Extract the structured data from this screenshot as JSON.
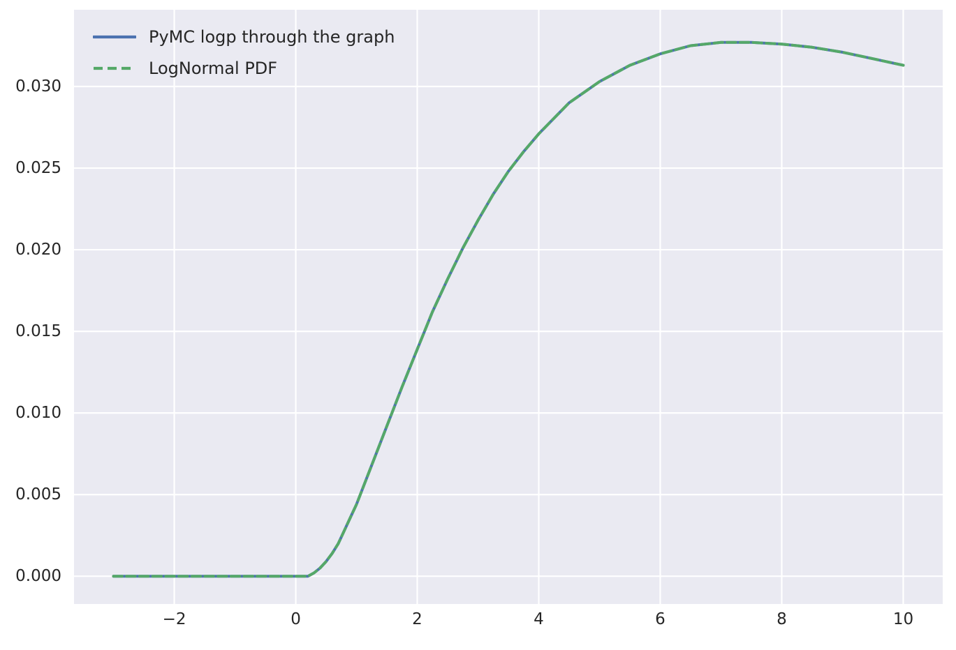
{
  "figure": {
    "background": "#ffffff",
    "axes_background": "#eaeaf2",
    "grid_color": "#ffffff",
    "text_color": "#262626"
  },
  "legend": {
    "position": "upper left",
    "entries": [
      {
        "label": "PyMC logp through the graph",
        "color": "#4C72B0",
        "line_style": "solid"
      },
      {
        "label": "LogNormal PDF",
        "color": "#55A868",
        "line_style": "dashed"
      }
    ]
  },
  "chart_data": {
    "type": "line",
    "title": "",
    "xlabel": "",
    "ylabel": "",
    "grid": true,
    "legend_position": "upper left",
    "xlim": [
      -3.65,
      10.65
    ],
    "ylim": [
      -0.0017,
      0.0347
    ],
    "x_ticks": [
      -2,
      0,
      2,
      4,
      6,
      8,
      10
    ],
    "x_tick_labels": [
      "−2",
      "0",
      "2",
      "4",
      "6",
      "8",
      "10"
    ],
    "y_ticks": [
      0.0,
      0.005,
      0.01,
      0.015,
      0.02,
      0.025,
      0.03
    ],
    "y_tick_labels": [
      "0.000",
      "0.005",
      "0.010",
      "0.015",
      "0.020",
      "0.025",
      "0.030"
    ],
    "x": [
      -3,
      -2.5,
      -2,
      -1.5,
      -1,
      -0.5,
      0,
      0.1,
      0.2,
      0.3,
      0.4,
      0.5,
      0.6,
      0.7,
      0.8,
      0.9,
      1,
      1.25,
      1.5,
      1.75,
      2,
      2.25,
      2.5,
      2.75,
      3,
      3.25,
      3.5,
      3.75,
      4,
      4.5,
      5,
      5.5,
      6,
      6.5,
      7,
      7.5,
      8,
      8.5,
      9,
      9.5,
      10
    ],
    "series": [
      {
        "name": "PyMC logp through the graph",
        "color": "#4C72B0",
        "line_style": "solid",
        "values": [
          0,
          0,
          0,
          0,
          0,
          0,
          0,
          0.0,
          0.0,
          0.0002,
          0.0005,
          0.0009,
          0.0014,
          0.002,
          0.0028,
          0.0036,
          0.0044,
          0.0068,
          0.0092,
          0.0116,
          0.0139,
          0.0162,
          0.0182,
          0.0201,
          0.0218,
          0.0234,
          0.0248,
          0.026,
          0.0271,
          0.029,
          0.0303,
          0.0313,
          0.032,
          0.0325,
          0.0327,
          0.0327,
          0.0326,
          0.0324,
          0.0321,
          0.0317,
          0.0313
        ]
      },
      {
        "name": "LogNormal PDF",
        "color": "#55A868",
        "line_style": "dashed",
        "values": [
          0,
          0,
          0,
          0,
          0,
          0,
          0,
          0.0,
          0.0,
          0.0002,
          0.0005,
          0.0009,
          0.0014,
          0.002,
          0.0028,
          0.0036,
          0.0044,
          0.0068,
          0.0092,
          0.0116,
          0.0139,
          0.0162,
          0.0182,
          0.0201,
          0.0218,
          0.0234,
          0.0248,
          0.026,
          0.0271,
          0.029,
          0.0303,
          0.0313,
          0.032,
          0.0325,
          0.0327,
          0.0327,
          0.0326,
          0.0324,
          0.0321,
          0.0317,
          0.0313
        ]
      }
    ]
  }
}
